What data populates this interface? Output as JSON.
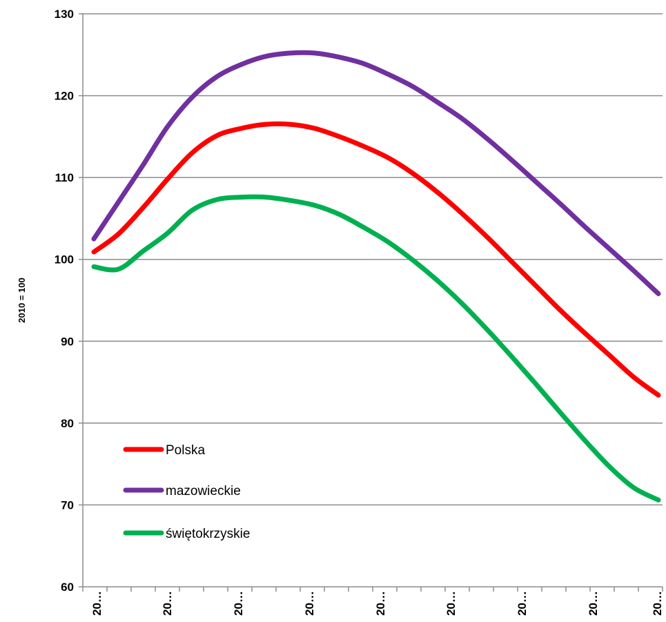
{
  "chart_data": {
    "type": "line",
    "ylabel": "2010 = 100",
    "ylim": [
      60,
      130
    ],
    "y_ticks": [
      60,
      70,
      80,
      90,
      100,
      110,
      120,
      130
    ],
    "x_tick_labels": [
      "20…",
      "20…",
      "20…",
      "20…",
      "20…",
      "20…",
      "20…",
      "20…",
      "20…"
    ],
    "grid": true,
    "legend_position": "bottom-left",
    "series": [
      {
        "name": "Polska",
        "color": "#ff0000",
        "values": [
          100.9,
          103.1,
          106.3,
          109.8,
          113.0,
          115.1,
          116.0,
          116.5,
          116.5,
          116.0,
          115.0,
          113.8,
          112.4,
          110.5,
          108.2,
          105.6,
          102.8,
          99.8,
          96.8,
          93.8,
          91.0,
          88.3,
          85.6,
          83.4
        ]
      },
      {
        "name": "mazowieckie",
        "color": "#7030a0",
        "values": [
          102.5,
          107.0,
          111.5,
          116.2,
          119.8,
          122.3,
          123.8,
          124.8,
          125.2,
          125.2,
          124.7,
          123.9,
          122.6,
          121.1,
          119.2,
          117.2,
          114.8,
          112.2,
          109.5,
          106.8,
          104.0,
          101.3,
          98.6,
          95.8
        ]
      },
      {
        "name": "świętokrzyskie",
        "color": "#00b050",
        "values": [
          99.1,
          98.8,
          101.0,
          103.2,
          106.0,
          107.3,
          107.6,
          107.6,
          107.2,
          106.6,
          105.5,
          103.9,
          102.1,
          99.9,
          97.4,
          94.6,
          91.5,
          88.2,
          84.8,
          81.3,
          77.9,
          74.7,
          72.1,
          70.6
        ]
      }
    ]
  }
}
